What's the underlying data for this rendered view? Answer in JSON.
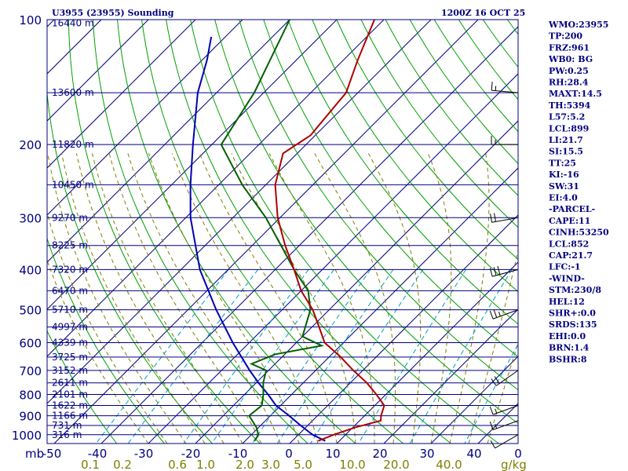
{
  "header": {
    "station": "U3955 (23955) Sounding",
    "time": "1200Z 16 OCT 25"
  },
  "indices": [
    "WMO:23955",
    "TP:200",
    "FRZ:961",
    "WB0: BG",
    "PW:0.25",
    "RH:28.4",
    "MAXT:14.5",
    "TH:5394",
    "L57:5.2",
    "LCL:899",
    "LI:21.7",
    "SI:15.5",
    "TT:25",
    "KI:-16",
    "SW:31",
    "EI:4.0",
    "-PARCEL-",
    "CAPE:11",
    "CINH:53250",
    "LCL:852",
    "CAP:21.7",
    "LFC:-1",
    "-WIND-",
    "STM:230/8",
    "HEL:12",
    "SHR+:0.0",
    "SRDS:135",
    "EHI:0.0",
    "BRN:1.4",
    "BSHR:8"
  ],
  "colors": {
    "isobar": "#00007f",
    "isotherm": "#00007f",
    "dry_adiabat": "#00a000",
    "moist_adiabat": "#7f7f00",
    "mixing_ratio": "#00a0c0",
    "temperature": "#b00000",
    "dewpoint": "#006000",
    "parcel": "#0000b0",
    "wind": "#000000"
  },
  "chart_data": {
    "type": "skew-t",
    "pressure_ticks": [
      "100",
      "200",
      "300",
      "400",
      "500",
      "600",
      "700",
      "800",
      "900",
      "1000"
    ],
    "pressure_unit": "mb",
    "temperature_ticks": [
      "-50",
      "-40",
      "-30",
      "-20",
      "-10",
      "0",
      "10",
      "20",
      "30",
      "40",
      "0"
    ],
    "mixing_ratio_ticks": [
      "0.1",
      "0.2",
      "0.6",
      "1.0",
      "2.0",
      "3.0",
      "5.0",
      "10.0",
      "20.0",
      "40.0"
    ],
    "mixing_ratio_unit": "g/kg",
    "heights": [
      {
        "p": 102,
        "label": "16440 m"
      },
      {
        "p": 150,
        "label": "13600 m"
      },
      {
        "p": 200,
        "label": "11820 m"
      },
      {
        "p": 250,
        "label": "10450 m"
      },
      {
        "p": 300,
        "label": "9270 m"
      },
      {
        "p": 350,
        "label": "8225 m"
      },
      {
        "p": 400,
        "label": "7320 m"
      },
      {
        "p": 450,
        "label": "6470 m"
      },
      {
        "p": 500,
        "label": "5710 m"
      },
      {
        "p": 550,
        "label": "4997 m"
      },
      {
        "p": 600,
        "label": "4339 m"
      },
      {
        "p": 650,
        "label": "3725 m"
      },
      {
        "p": 700,
        "label": "3152 m"
      },
      {
        "p": 750,
        "label": "2611 m"
      },
      {
        "p": 800,
        "label": "2101 m"
      },
      {
        "p": 850,
        "label": "1622 m"
      },
      {
        "p": 900,
        "label": "1166 m"
      },
      {
        "p": 950,
        "label": "731 m"
      },
      {
        "p": 1000,
        "label": "316 m"
      }
    ],
    "temperature": [
      {
        "p": 1035,
        "t": 5.5
      },
      {
        "p": 1000,
        "t": 7.5
      },
      {
        "p": 960,
        "t": 10.5
      },
      {
        "p": 925,
        "t": 14.5
      },
      {
        "p": 900,
        "t": 13.5
      },
      {
        "p": 850,
        "t": 12.0
      },
      {
        "p": 800,
        "t": 8.0
      },
      {
        "p": 750,
        "t": 3.5
      },
      {
        "p": 700,
        "t": -2.0
      },
      {
        "p": 650,
        "t": -7.5
      },
      {
        "p": 600,
        "t": -14.0
      },
      {
        "p": 550,
        "t": -18.5
      },
      {
        "p": 500,
        "t": -23.5
      },
      {
        "p": 450,
        "t": -30.0
      },
      {
        "p": 400,
        "t": -36.0
      },
      {
        "p": 350,
        "t": -43.0
      },
      {
        "p": 300,
        "t": -50.5
      },
      {
        "p": 250,
        "t": -58.0
      },
      {
        "p": 210,
        "t": -63.0
      },
      {
        "p": 190,
        "t": -61.0
      },
      {
        "p": 150,
        "t": -62.5
      },
      {
        "p": 125,
        "t": -67.0
      },
      {
        "p": 100,
        "t": -72.0
      }
    ],
    "dewpoint": [
      {
        "p": 1035,
        "t": -8.0
      },
      {
        "p": 1000,
        "t": -8.5
      },
      {
        "p": 960,
        "t": -10.5
      },
      {
        "p": 900,
        "t": -14.5
      },
      {
        "p": 850,
        "t": -14.0
      },
      {
        "p": 800,
        "t": -16.0
      },
      {
        "p": 750,
        "t": -18.5
      },
      {
        "p": 700,
        "t": -20.5
      },
      {
        "p": 675,
        "t": -25.0
      },
      {
        "p": 640,
        "t": -22.0
      },
      {
        "p": 610,
        "t": -14.0
      },
      {
        "p": 580,
        "t": -20.0
      },
      {
        "p": 500,
        "t": -24.0
      },
      {
        "p": 450,
        "t": -28.5
      },
      {
        "p": 400,
        "t": -36.0
      },
      {
        "p": 300,
        "t": -53.0
      },
      {
        "p": 250,
        "t": -65.0
      },
      {
        "p": 200,
        "t": -78.0
      },
      {
        "p": 150,
        "t": -82.0
      },
      {
        "p": 100,
        "t": -90.0
      }
    ],
    "parcel": [
      {
        "p": 1035,
        "t": 7.0
      },
      {
        "p": 1000,
        "t": 3.0
      },
      {
        "p": 950,
        "t": -1.5
      },
      {
        "p": 900,
        "t": -6.0
      },
      {
        "p": 850,
        "t": -11.0
      },
      {
        "p": 800,
        "t": -15.0
      },
      {
        "p": 750,
        "t": -19.5
      },
      {
        "p": 700,
        "t": -24.0
      },
      {
        "p": 600,
        "t": -33.5
      },
      {
        "p": 500,
        "t": -44.0
      },
      {
        "p": 400,
        "t": -56.0
      },
      {
        "p": 300,
        "t": -69.0
      },
      {
        "p": 250,
        "t": -76.0
      },
      {
        "p": 200,
        "t": -84.0
      },
      {
        "p": 150,
        "t": -94.0
      },
      {
        "p": 125,
        "t": -99.0
      },
      {
        "p": 110,
        "t": -103.0
      }
    ],
    "wind_barbs": [
      {
        "p": 1000,
        "dir": 240,
        "spd": 10
      },
      {
        "p": 925,
        "dir": 250,
        "spd": 15
      },
      {
        "p": 850,
        "dir": 250,
        "spd": 15
      },
      {
        "p": 700,
        "dir": 235,
        "spd": 20
      },
      {
        "p": 500,
        "dir": 250,
        "spd": 25
      },
      {
        "p": 400,
        "dir": 255,
        "spd": 30
      },
      {
        "p": 300,
        "dir": 260,
        "spd": 20
      },
      {
        "p": 200,
        "dir": 270,
        "spd": 15
      },
      {
        "p": 150,
        "dir": 275,
        "spd": 15
      }
    ]
  }
}
